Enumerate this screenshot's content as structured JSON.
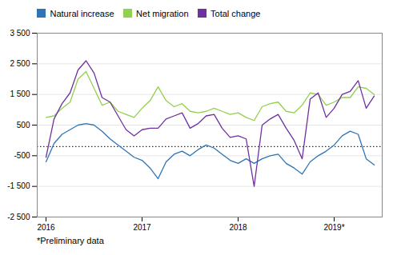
{
  "chart_data": {
    "type": "line",
    "categories": [
      "2016",
      null,
      null,
      null,
      null,
      null,
      null,
      null,
      null,
      null,
      null,
      null,
      "2017",
      null,
      null,
      null,
      null,
      null,
      null,
      null,
      null,
      null,
      null,
      null,
      "2018",
      null,
      null,
      null,
      null,
      null,
      null,
      null,
      null,
      null,
      null,
      null,
      "2019*",
      null,
      null,
      null,
      null,
      null
    ],
    "series": [
      {
        "name": "Natural increase",
        "color": "#2e75b6",
        "values": [
          -700,
          -100,
          200,
          350,
          500,
          550,
          500,
          300,
          50,
          -150,
          -350,
          -550,
          -650,
          -900,
          -1250,
          -700,
          -450,
          -350,
          -500,
          -300,
          -150,
          -250,
          -450,
          -650,
          -750,
          -600,
          -750,
          -600,
          -500,
          -450,
          -750,
          -900,
          -1100,
          -700,
          -500,
          -350,
          -150,
          150,
          300,
          200,
          -600,
          -800
        ]
      },
      {
        "name": "Net migration",
        "color": "#92d050",
        "values": [
          750,
          800,
          1050,
          1250,
          2000,
          2250,
          1700,
          1150,
          1250,
          950,
          850,
          750,
          1050,
          1300,
          1750,
          1300,
          1100,
          1200,
          950,
          900,
          950,
          1050,
          950,
          850,
          900,
          750,
          650,
          1100,
          1200,
          1250,
          950,
          900,
          1150,
          1550,
          1500,
          1150,
          1250,
          1400,
          1400,
          1750,
          1700,
          1500
        ]
      },
      {
        "name": "Total change",
        "color": "#7030a0",
        "values": [
          -550,
          700,
          1200,
          1550,
          2300,
          2600,
          2200,
          1400,
          1250,
          800,
          350,
          150,
          350,
          400,
          400,
          700,
          800,
          900,
          400,
          550,
          800,
          850,
          400,
          100,
          150,
          50,
          -1500,
          500,
          700,
          850,
          400,
          0,
          -600,
          1350,
          1550,
          750,
          1050,
          1500,
          1600,
          1950,
          1050,
          1450
        ]
      }
    ],
    "ylim": [
      -2500,
      3500
    ],
    "yticks": [
      {
        "value": -2500,
        "label": "-2 500"
      },
      {
        "value": -1500,
        "label": "-1 500"
      },
      -500,
      500,
      {
        "value": 1500,
        "label": "1 500"
      },
      {
        "value": 2500,
        "label": "2 500"
      },
      {
        "value": 3500,
        "label": "3 500"
      }
    ],
    "reference_line": {
      "y": -200,
      "color": "#000000",
      "line_style": "dotted"
    },
    "grid": "y",
    "legend": "top",
    "footnote": "*Preliminary data"
  }
}
